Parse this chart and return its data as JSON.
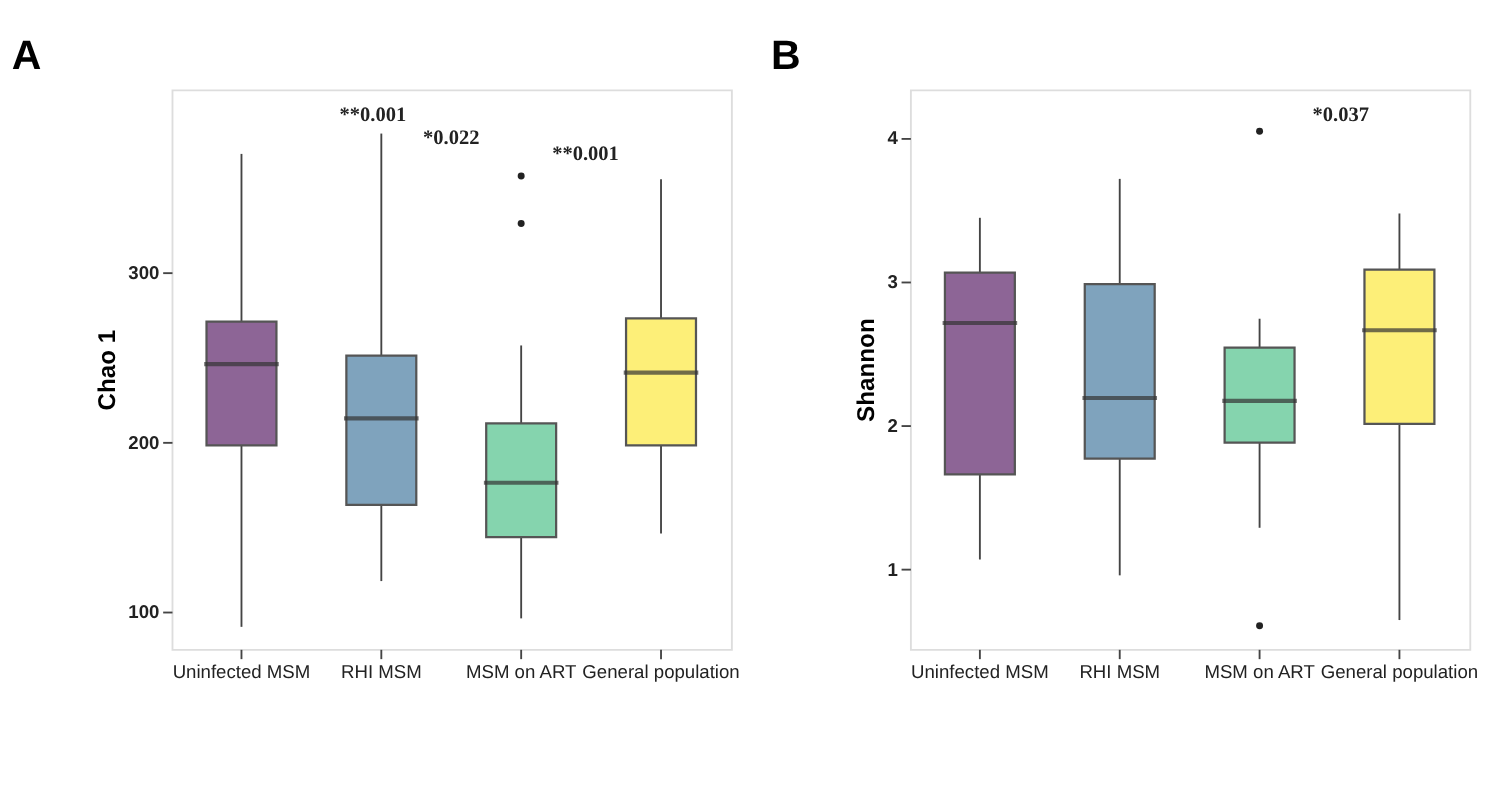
{
  "chart_data": [
    {
      "type": "box",
      "title": "A",
      "ylabel": "Chao 1",
      "categories": [
        "Uninfected MSM",
        "RHI MSM",
        "MSM on ART",
        "General population"
      ],
      "colors": [
        "#8d6596",
        "#7fa3bd",
        "#85d4ae",
        "#fdef78"
      ],
      "boxes": [
        {
          "low": 91,
          "q1": 198,
          "median": 246,
          "q3": 271,
          "high": 370
        },
        {
          "low": 118,
          "q1": 163,
          "median": 214,
          "q3": 251,
          "high": 382
        },
        {
          "low": 96,
          "q1": 144,
          "median": 176,
          "q3": 211,
          "high": 257,
          "outliers": [
            357,
            329
          ]
        },
        {
          "low": 146,
          "q1": 198,
          "median": 241,
          "q3": 273,
          "high": 355
        }
      ],
      "ylim": [
        78,
        408
      ],
      "yticks": [
        100,
        200,
        300
      ],
      "grid": false,
      "legend": false,
      "annotations": [
        "**0.001",
        "*0.022",
        "**0.001"
      ]
    },
    {
      "type": "box",
      "title": "B",
      "ylabel": "Shannon",
      "categories": [
        "Uninfected MSM",
        "RHI MSM",
        "MSM on ART",
        "General population"
      ],
      "colors": [
        "#8d6596",
        "#7fa3bd",
        "#85d4ae",
        "#fdef78"
      ],
      "boxes": [
        {
          "low": 1.07,
          "q1": 1.66,
          "median": 2.71,
          "q3": 3.06,
          "high": 3.44
        },
        {
          "low": 0.96,
          "q1": 1.77,
          "median": 2.19,
          "q3": 2.98,
          "high": 3.71
        },
        {
          "low": 1.29,
          "q1": 1.88,
          "median": 2.17,
          "q3": 2.54,
          "high": 2.74,
          "outliers": [
            4.04,
            0.61
          ]
        },
        {
          "low": 0.65,
          "q1": 2.01,
          "median": 2.66,
          "q3": 3.08,
          "high": 3.47
        }
      ],
      "ylim": [
        0.45,
        4.33
      ],
      "yticks": [
        1,
        2,
        3,
        4
      ],
      "grid": false,
      "legend": false,
      "annotations": [
        "*0.037"
      ]
    }
  ]
}
